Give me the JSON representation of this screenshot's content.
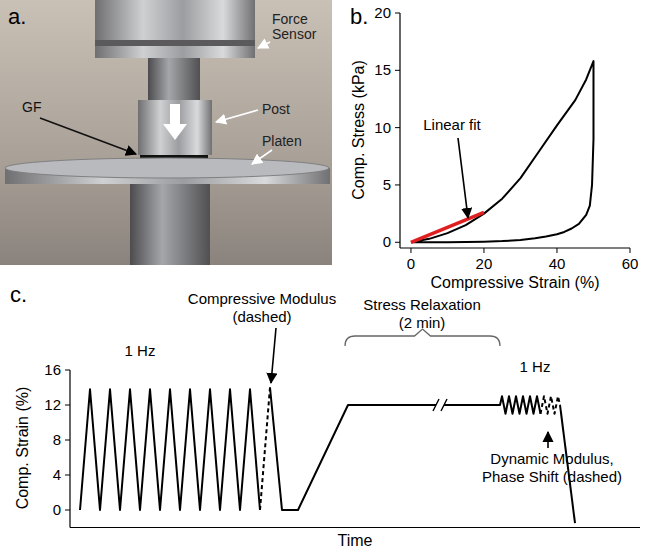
{
  "photo": {
    "panel_label": "a.",
    "labels": [
      {
        "lines": [
          "Force",
          "Sensor"
        ]
      },
      {
        "lines": [
          "Post"
        ]
      },
      {
        "lines": [
          "GF"
        ]
      },
      {
        "lines": [
          "Platen"
        ]
      }
    ]
  },
  "chart_data": [
    {
      "type": "line",
      "panel_label": "b.",
      "x_label": "Compressive Strain (%)",
      "y_label": "Comp. Stress (kPa)",
      "xlim": [
        -3,
        60
      ],
      "ylim": [
        -0.5,
        20
      ],
      "xticks": [
        0,
        20,
        40,
        60
      ],
      "yticks": [
        0,
        5,
        10,
        15,
        20
      ],
      "series": [
        {
          "color": "#000000",
          "line_style": "solid",
          "x": [
            0,
            5,
            10,
            15,
            20,
            25,
            30,
            35,
            40,
            45,
            48,
            50,
            50,
            49.6,
            49,
            48,
            46,
            44,
            42,
            40,
            37,
            34,
            30,
            25,
            20,
            15,
            10,
            5,
            0
          ],
          "values": [
            0,
            0.3,
            0.8,
            1.5,
            2.5,
            3.8,
            5.6,
            7.9,
            10.2,
            12.4,
            14.2,
            15.8,
            9,
            5,
            3.2,
            2.4,
            1.6,
            1.2,
            0.9,
            0.7,
            0.5,
            0.35,
            0.2,
            0.1,
            0.05,
            0.02,
            0,
            0,
            0
          ]
        },
        {
          "color": "#e02020",
          "line_style": "solid",
          "x": [
            0,
            20
          ],
          "values": [
            0,
            2.6
          ]
        }
      ],
      "annotations": [
        {
          "lines": [
            "Linear fit"
          ]
        }
      ]
    },
    {
      "type": "line",
      "panel_label": "c.",
      "x_label": "Time",
      "y_label": "Comp. Strain (%)",
      "xlim": [
        0,
        570
      ],
      "ylim": [
        -2,
        16
      ],
      "yticks": [
        0,
        4,
        8,
        12,
        16
      ],
      "tick_labels": "y",
      "series": [
        {
          "color": "#000000",
          "line_style": "solid",
          "x": [
            10,
            20,
            30,
            40,
            50,
            60,
            70,
            80,
            90,
            100,
            110,
            120,
            130,
            140,
            150,
            160,
            170,
            180,
            190
          ],
          "values": [
            0,
            13.8,
            0,
            13.8,
            0,
            13.8,
            0,
            13.8,
            0,
            13.8,
            0,
            13.8,
            0,
            13.8,
            0,
            13.8,
            0,
            13.8,
            0
          ]
        },
        {
          "color": "#000000",
          "line_style": "dashed",
          "x": [
            190,
            200
          ],
          "values": [
            0,
            14
          ]
        },
        {
          "color": "#000000",
          "line_style": "solid",
          "x": [
            200,
            212,
            228,
            278,
            430,
            432,
            435.5,
            439,
            442.5,
            446,
            449.5,
            453,
            456.5,
            460,
            463.5,
            467,
            470.5
          ],
          "values": [
            14,
            0,
            0,
            12,
            12,
            13,
            11,
            13,
            11,
            13,
            11,
            13,
            11,
            13,
            11,
            13,
            11
          ]
        },
        {
          "color": "#000000",
          "line_style": "dashed",
          "x": [
            470.5,
            474,
            477.5,
            481,
            484.5,
            488,
            490
          ],
          "values": [
            11,
            13,
            11,
            13,
            11,
            13,
            12
          ]
        },
        {
          "color": "#000000",
          "line_style": "solid",
          "x": [
            490,
            505
          ],
          "values": [
            12,
            -1.5
          ]
        }
      ],
      "annotations": [
        {
          "lines": [
            "1 Hz"
          ]
        },
        {
          "lines": [
            "Compressive Modulus",
            "(dashed)"
          ]
        },
        {
          "lines": [
            "Stress Relaxation",
            "(2 min)"
          ]
        },
        {
          "lines": [
            "1 Hz"
          ]
        },
        {
          "lines": [
            "Dynamic Modulus,",
            "Phase Shift (dashed)"
          ]
        }
      ]
    }
  ]
}
